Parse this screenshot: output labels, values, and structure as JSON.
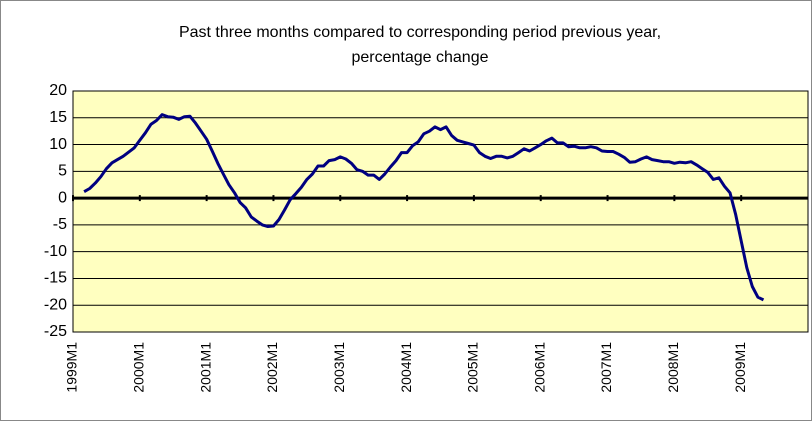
{
  "chart_data": {
    "type": "line",
    "title": "Past three months compared to corresponding period previous year,",
    "subtitle": "percentage change",
    "categories": [
      "1999M1",
      null,
      null,
      null,
      null,
      null,
      null,
      null,
      null,
      null,
      null,
      null,
      "2000M1",
      null,
      null,
      null,
      null,
      null,
      null,
      null,
      null,
      null,
      null,
      null,
      "2001M1",
      null,
      null,
      null,
      null,
      null,
      null,
      null,
      null,
      null,
      null,
      null,
      "2002M1",
      null,
      null,
      null,
      null,
      null,
      null,
      null,
      null,
      null,
      null,
      null,
      "2003M1",
      null,
      null,
      null,
      null,
      null,
      null,
      null,
      null,
      null,
      null,
      null,
      "2004M1",
      null,
      null,
      null,
      null,
      null,
      null,
      null,
      null,
      null,
      null,
      null,
      "2005M1",
      null,
      null,
      null,
      null,
      null,
      null,
      null,
      null,
      null,
      null,
      null,
      "2006M1",
      null,
      null,
      null,
      null,
      null,
      null,
      null,
      null,
      null,
      null,
      null,
      "2007M1",
      null,
      null,
      null,
      null,
      null,
      null,
      null,
      null,
      null,
      null,
      null,
      "2008M1",
      null,
      null,
      null,
      null,
      null,
      null,
      null,
      null,
      null,
      null,
      null,
      "2009M1",
      null,
      null,
      null,
      null,
      null,
      null,
      null,
      null,
      null,
      null,
      null
    ],
    "values": [
      null,
      null,
      1.2,
      1.8,
      2.8,
      4.0,
      5.5,
      6.6,
      7.2,
      7.8,
      8.6,
      9.4,
      10.8,
      12.2,
      13.8,
      14.5,
      15.6,
      15.2,
      15.1,
      14.7,
      15.2,
      15.3,
      14.0,
      12.5,
      11.0,
      8.8,
      6.5,
      4.5,
      2.5,
      1.0,
      -0.8,
      -1.8,
      -3.5,
      -4.3,
      -5.0,
      -5.3,
      -5.2,
      -4.0,
      -2.2,
      -0.3,
      0.8,
      2.0,
      3.5,
      4.5,
      6.0,
      6.0,
      7.0,
      7.2,
      7.7,
      7.3,
      6.5,
      5.3,
      5.0,
      4.3,
      4.3,
      3.5,
      4.5,
      5.8,
      7.0,
      8.5,
      8.5,
      9.8,
      10.5,
      12.0,
      12.5,
      13.3,
      12.8,
      13.3,
      11.7,
      10.8,
      10.5,
      10.2,
      9.9,
      8.5,
      7.8,
      7.4,
      7.8,
      7.8,
      7.5,
      7.8,
      8.5,
      9.2,
      8.8,
      9.4,
      10.0,
      10.7,
      11.2,
      10.3,
      10.3,
      9.6,
      9.7,
      9.4,
      9.4,
      9.6,
      9.4,
      8.8,
      8.7,
      8.7,
      8.2,
      7.6,
      6.7,
      6.8,
      7.3,
      7.7,
      7.2,
      7.0,
      6.8,
      6.8,
      6.5,
      6.7,
      6.6,
      6.8,
      6.2,
      5.5,
      4.8,
      3.5,
      3.8,
      2.2,
      1.0,
      -3.0,
      -8.0,
      -13.0,
      -16.5,
      -18.5,
      -19.0,
      null,
      null,
      null,
      null,
      null,
      null,
      null
    ],
    "color": "#000080",
    "ylim": [
      -25,
      20
    ],
    "yticks": [
      20,
      15,
      10,
      5,
      0,
      -5,
      -10,
      -15,
      -20,
      -25
    ],
    "grid": true
  }
}
